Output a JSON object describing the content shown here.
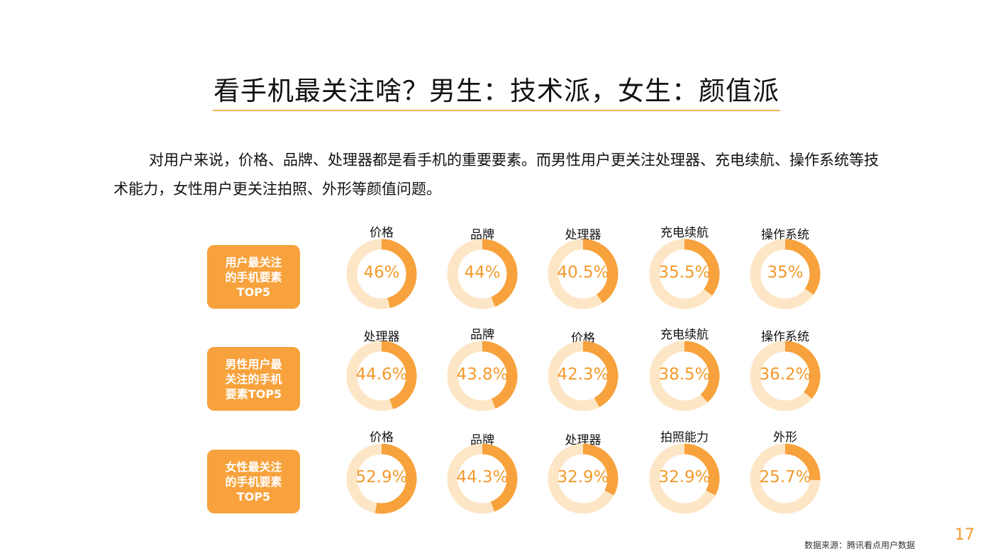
{
  "title": "看手机最关注啥？男生：技术派，女生：颜值派",
  "intro": "对用户来说，价格、品牌、处理器都是看手机的重要要素。而男性用户更关注处理器、充电续航、操作系统等技术能力，女性用户更关注拍照、外形等颜值问题。",
  "colors": {
    "accent": "#f7a23c",
    "track": "#fde6c6",
    "value_text": "#f39a2d"
  },
  "chart_data": {
    "type": "donut-grid",
    "rows": [
      {
        "label": "用户最关注\n的手机要素\nTOP5",
        "items": [
          {
            "name": "价格",
            "value": 46,
            "display": "46%"
          },
          {
            "name": "品牌",
            "value": 44,
            "display": "44%"
          },
          {
            "name": "处理器",
            "value": 40.5,
            "display": "40.5%"
          },
          {
            "name": "充电续航",
            "value": 35.5,
            "display": "35.5%"
          },
          {
            "name": "操作系统",
            "value": 35,
            "display": "35%"
          }
        ]
      },
      {
        "label": "男性用户最\n关注的手机\n要素TOP5",
        "items": [
          {
            "name": "处理器",
            "value": 44.6,
            "display": "44.6%"
          },
          {
            "name": "品牌",
            "value": 43.8,
            "display": "43.8%"
          },
          {
            "name": "价格",
            "value": 42.3,
            "display": "42.3%"
          },
          {
            "name": "充电续航",
            "value": 38.5,
            "display": "38.5%"
          },
          {
            "name": "操作系统",
            "value": 36.2,
            "display": "36.2%"
          }
        ]
      },
      {
        "label": "女性最关注\n的手机要素\nTOP5",
        "items": [
          {
            "name": "价格",
            "value": 52.9,
            "display": "52.9%"
          },
          {
            "name": "品牌",
            "value": 44.3,
            "display": "44.3%"
          },
          {
            "name": "处理器",
            "value": 32.9,
            "display": "32.9%"
          },
          {
            "name": "拍照能力",
            "value": 32.9,
            "display": "32.9%"
          },
          {
            "name": "外形",
            "value": 25.7,
            "display": "25.7%"
          }
        ]
      }
    ]
  },
  "source": "数据来源：腾讯看点用户数据",
  "page_number": "17"
}
